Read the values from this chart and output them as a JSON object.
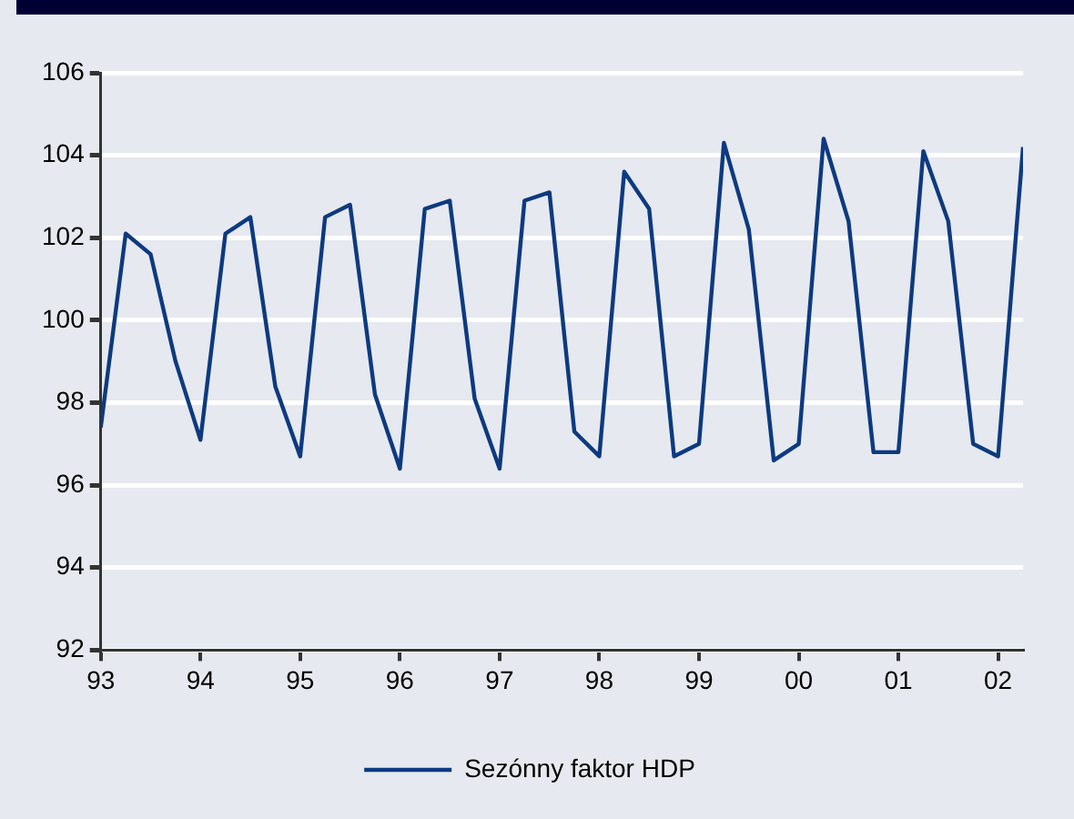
{
  "chart_data": {
    "type": "line",
    "x": [
      1993,
      1993.25,
      1993.5,
      1993.75,
      1994,
      1994.25,
      1994.5,
      1994.75,
      1995,
      1995.25,
      1995.5,
      1995.75,
      1996,
      1996.25,
      1996.5,
      1996.75,
      1997,
      1997.25,
      1997.5,
      1997.75,
      1998,
      1998.25,
      1998.5,
      1998.75,
      1999,
      1999.25,
      1999.5,
      1999.75,
      2000,
      2000.25,
      2000.5,
      2000.75,
      2001,
      2001.25,
      2001.5,
      2001.75,
      2002,
      2002.25
    ],
    "series": [
      {
        "name": "Sezónny faktor HDP",
        "color": "#0d3a80",
        "values": [
          97.4,
          102.1,
          101.6,
          99.0,
          97.1,
          102.1,
          102.5,
          98.4,
          96.7,
          102.5,
          102.8,
          98.2,
          96.4,
          102.7,
          102.9,
          98.1,
          96.4,
          102.9,
          103.1,
          97.3,
          96.7,
          103.6,
          102.7,
          96.7,
          97.0,
          104.3,
          102.2,
          96.6,
          97.0,
          104.4,
          102.4,
          96.8,
          96.8,
          104.1,
          102.4,
          97.0,
          96.7,
          104.2
        ]
      }
    ],
    "xlim": [
      1993,
      2002.25
    ],
    "xticks": [
      {
        "value": 1993,
        "label": "93"
      },
      {
        "value": 1994,
        "label": "94"
      },
      {
        "value": 1995,
        "label": "95"
      },
      {
        "value": 1996,
        "label": "96"
      },
      {
        "value": 1997,
        "label": "97"
      },
      {
        "value": 1998,
        "label": "98"
      },
      {
        "value": 1999,
        "label": "99"
      },
      {
        "value": 2000,
        "label": "00"
      },
      {
        "value": 2001,
        "label": "01"
      },
      {
        "value": 2002,
        "label": "02"
      }
    ],
    "ylim": [
      92,
      106
    ],
    "yticks": [
      92,
      94,
      96,
      98,
      100,
      102,
      104,
      106
    ],
    "grid": "y",
    "legend": "bottom",
    "marker": "none",
    "line_style": "solid"
  }
}
